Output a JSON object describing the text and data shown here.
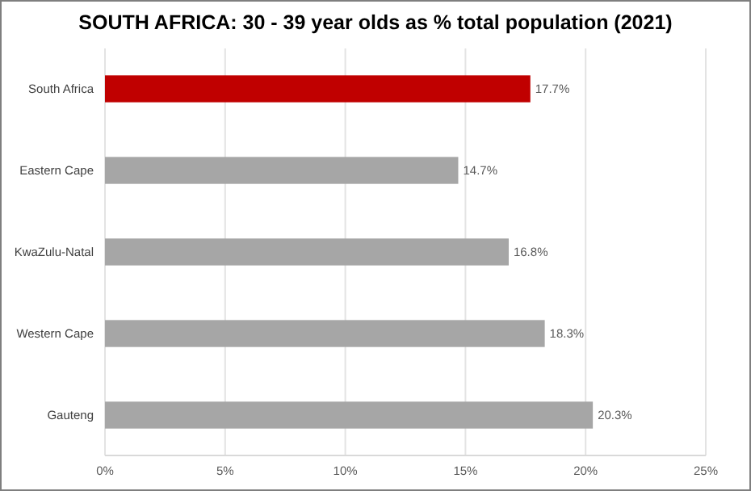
{
  "chart_data": {
    "type": "bar",
    "orientation": "horizontal",
    "title": "SOUTH AFRICA: 30 - 39 year olds as % total population (2021)",
    "categories": [
      "South Africa",
      "Eastern Cape",
      "KwaZulu-Natal",
      "Western Cape",
      "Gauteng"
    ],
    "values": [
      17.7,
      14.7,
      16.8,
      18.3,
      20.3
    ],
    "colors": [
      "#c00000",
      "#a6a6a6",
      "#a6a6a6",
      "#a6a6a6",
      "#a6a6a6"
    ],
    "value_labels": [
      "17.7%",
      "14.7%",
      "16.8%",
      "18.3%",
      "20.3%"
    ],
    "xlim": [
      0,
      25
    ],
    "xticks": [
      {
        "value": 0,
        "label": "0%"
      },
      {
        "value": 5,
        "label": "5%"
      },
      {
        "value": 10,
        "label": "10%"
      },
      {
        "value": 15,
        "label": "15%"
      },
      {
        "value": 20,
        "label": "20%"
      },
      {
        "value": 25,
        "label": "25%"
      }
    ],
    "grid": "x"
  }
}
